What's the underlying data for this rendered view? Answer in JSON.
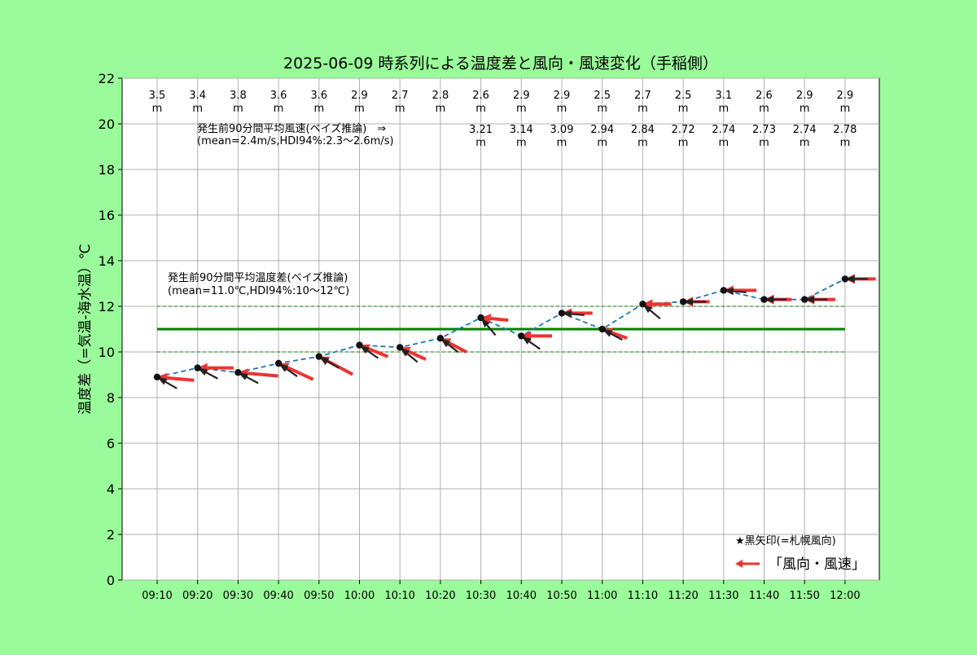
{
  "chart_data": {
    "type": "line",
    "title": "2025-06-09 時系列による温度差と風向・風速変化（手稲側）",
    "ylabel": "温度差（=気温-海水温）℃",
    "xlabel": "",
    "ylim": [
      0,
      22
    ],
    "yticks": [
      0,
      2,
      4,
      6,
      8,
      10,
      12,
      14,
      16,
      18,
      20,
      22
    ],
    "grid": true,
    "categories": [
      "09:10",
      "09:20",
      "09:30",
      "09:40",
      "09:50",
      "10:00",
      "10:10",
      "10:20",
      "10:30",
      "10:40",
      "10:50",
      "11:00",
      "11:10",
      "11:20",
      "11:30",
      "11:40",
      "11:50",
      "12:00"
    ],
    "temp_diff": [
      8.9,
      9.3,
      9.1,
      9.5,
      9.8,
      10.3,
      10.2,
      10.6,
      11.5,
      10.7,
      11.7,
      11.0,
      12.1,
      12.2,
      12.7,
      12.3,
      12.3,
      13.2
    ],
    "wind_speed_labels": [
      "3.5",
      "3.4",
      "3.8",
      "3.6",
      "3.6",
      "2.9",
      "2.7",
      "2.8",
      "2.6",
      "2.9",
      "2.9",
      "2.5",
      "2.7",
      "2.5",
      "3.1",
      "2.6",
      "2.9",
      "2.9"
    ],
    "wind_unit": "m",
    "predicted_speed_labels": [
      "",
      "",
      "",
      "",
      "",
      "",
      "",
      "",
      "3.21",
      "3.14",
      "3.09",
      "2.94",
      "2.84",
      "2.72",
      "2.74",
      "2.73",
      "2.74",
      "2.78"
    ],
    "teine_wind_dir_deg": [
      95,
      85,
      95,
      115,
      118,
      112,
      115,
      118,
      95,
      88,
      90,
      110,
      85,
      90,
      65,
      90,
      90,
      90
    ],
    "sapporo_wind_dir_deg": [
      120,
      118,
      118,
      125,
      120,
      125,
      130,
      128,
      140,
      125,
      95,
      118,
      130,
      90,
      95,
      90,
      65,
      90
    ],
    "mean_temp_diff": 11.0,
    "hdi_temp_diff": [
      10,
      12
    ],
    "mean_speed": 2.4,
    "hdi_speed": [
      2.3,
      2.6
    ],
    "annotation_speed_line1": "発生前90分間平均風速(ベイズ推論)　⇒",
    "annotation_speed_line2": "(mean=2.4m/s,HDI94%:2.3～2.6m/s)",
    "annotation_temp_line1": "発生前90分間平均温度差(ベイズ推論)",
    "annotation_temp_line2": "(mean=11.0℃,HDI94%:10～12℃)",
    "legend_note": "★黒矢印(=札幌風向)",
    "legend_label": "「風向・風速」",
    "legend_position": "bottom-right",
    "colors": {
      "background": "#99fb99",
      "plot_bg": "#ffffff",
      "line": "#1f77b4",
      "mean_line": "#008000",
      "teine_arrow": "#ee3333",
      "sapporo_arrow": "#222222",
      "marker": "#111111"
    }
  }
}
